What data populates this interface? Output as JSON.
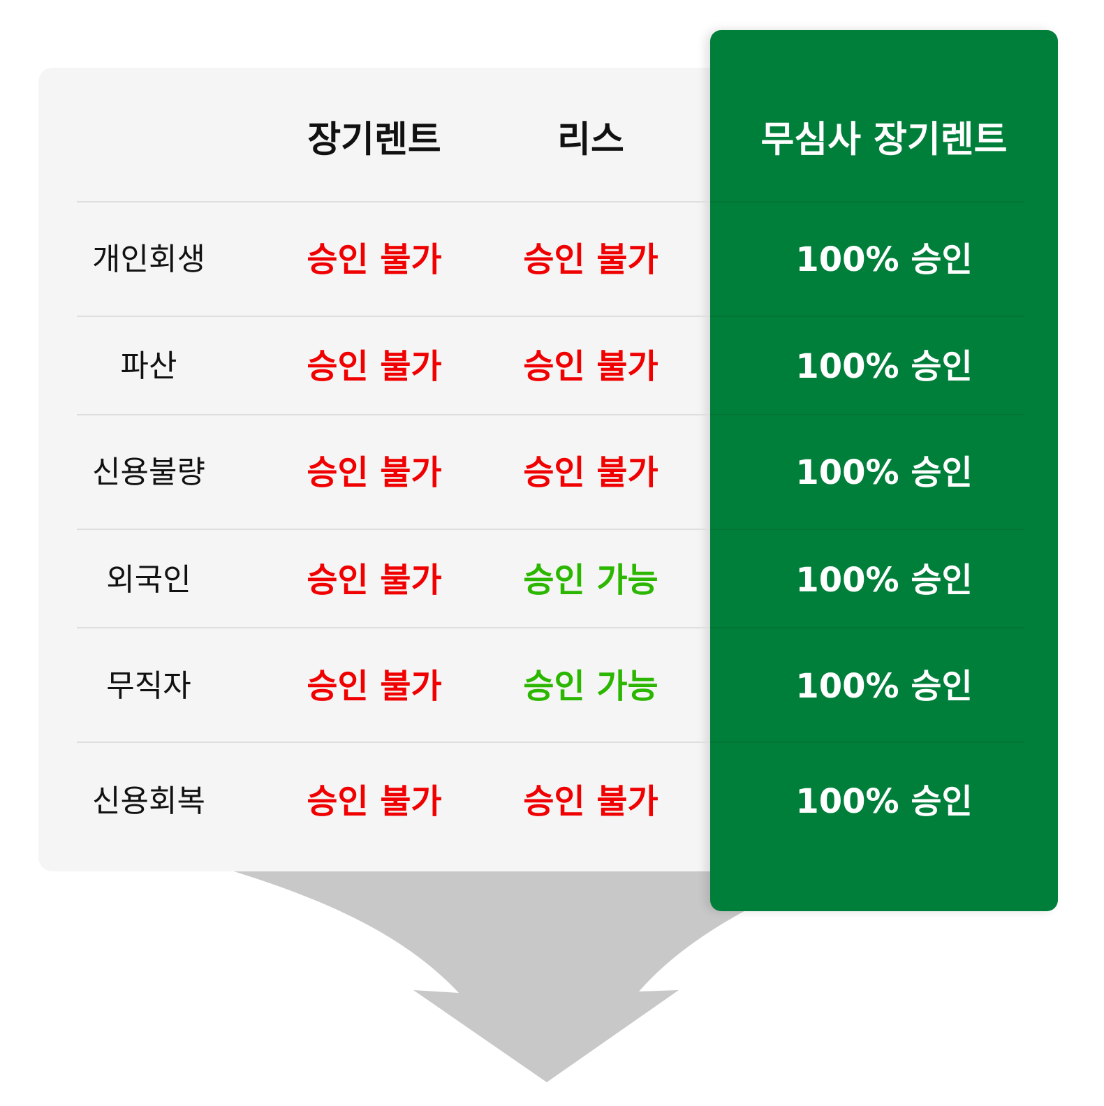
{
  "colors": {
    "panel_green": "#007f3a",
    "deny_red": "#f00000",
    "allow_green": "#2bb600",
    "background_gray": "#f5f5f5"
  },
  "headers": [
    "장기렌트",
    "리스",
    "무심사 장기렌트"
  ],
  "rows": [
    {
      "label": "개인회생",
      "c1": "승인 불가",
      "c2": "승인 불가",
      "c3": "100% 승인"
    },
    {
      "label": "파산",
      "c1": "승인 불가",
      "c2": "승인 불가",
      "c3": "100% 승인"
    },
    {
      "label": "신용불량",
      "c1": "승인 불가",
      "c2": "승인 불가",
      "c3": "100% 승인"
    },
    {
      "label": "외국인",
      "c1": "승인 불가",
      "c2": "승인 가능",
      "c3": "100% 승인"
    },
    {
      "label": "무직자",
      "c1": "승인 불가",
      "c2": "승인 가능",
      "c3": "100% 승인"
    },
    {
      "label": "신용회복",
      "c1": "승인 불가",
      "c2": "승인 불가",
      "c3": "100% 승인"
    }
  ]
}
